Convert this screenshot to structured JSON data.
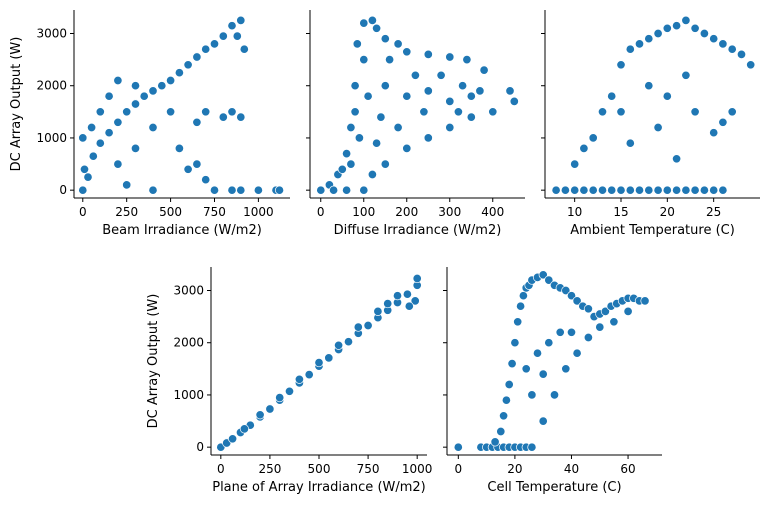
{
  "chart_data": [
    {
      "type": "scatter",
      "xlabel": "Beam Irradiance (W/m2)",
      "ylabel": "DC Array Output (W)",
      "xlim": [
        -50,
        1180
      ],
      "ylim": [
        -150,
        3450
      ],
      "xticks": [
        0,
        250,
        500,
        750,
        1000
      ],
      "yticks": [
        0,
        1000,
        2000,
        3000
      ],
      "color": "#1f77b4",
      "points": [
        [
          0,
          0
        ],
        [
          30,
          250
        ],
        [
          60,
          650
        ],
        [
          100,
          900
        ],
        [
          150,
          1100
        ],
        [
          200,
          1300
        ],
        [
          250,
          1500
        ],
        [
          300,
          1650
        ],
        [
          350,
          1800
        ],
        [
          400,
          1900
        ],
        [
          450,
          2000
        ],
        [
          500,
          2100
        ],
        [
          550,
          2250
        ],
        [
          600,
          2400
        ],
        [
          650,
          2550
        ],
        [
          700,
          2700
        ],
        [
          750,
          2800
        ],
        [
          800,
          2950
        ],
        [
          850,
          3150
        ],
        [
          900,
          3250
        ],
        [
          700,
          1500
        ],
        [
          800,
          1400
        ],
        [
          850,
          1500
        ],
        [
          900,
          1400
        ],
        [
          600,
          400
        ],
        [
          650,
          500
        ],
        [
          700,
          200
        ],
        [
          750,
          0
        ],
        [
          850,
          0
        ],
        [
          900,
          0
        ],
        [
          1100,
          0
        ],
        [
          1120,
          0
        ],
        [
          1000,
          0
        ],
        [
          200,
          2100
        ],
        [
          300,
          2000
        ],
        [
          150,
          1800
        ],
        [
          100,
          1500
        ],
        [
          500,
          1500
        ],
        [
          400,
          1200
        ],
        [
          300,
          800
        ],
        [
          200,
          500
        ],
        [
          50,
          1200
        ],
        [
          0,
          1000
        ],
        [
          10,
          400
        ],
        [
          400,
          0
        ],
        [
          250,
          100
        ],
        [
          550,
          800
        ],
        [
          650,
          1300
        ],
        [
          880,
          2950
        ],
        [
          920,
          2700
        ]
      ]
    },
    {
      "type": "scatter",
      "xlabel": "Diffuse Irradiance (W/m2)",
      "ylabel": "",
      "xlim": [
        -25,
        475
      ],
      "ylim": [
        -150,
        3450
      ],
      "xticks": [
        0,
        100,
        200,
        300,
        400
      ],
      "yticks": [
        0,
        1000,
        2000,
        3000
      ],
      "color": "#1f77b4",
      "points": [
        [
          0,
          0
        ],
        [
          20,
          100
        ],
        [
          40,
          300
        ],
        [
          50,
          400
        ],
        [
          60,
          700
        ],
        [
          70,
          1200
        ],
        [
          80,
          2000
        ],
        [
          85,
          2800
        ],
        [
          100,
          3200
        ],
        [
          120,
          3250
        ],
        [
          130,
          3100
        ],
        [
          150,
          2900
        ],
        [
          180,
          2800
        ],
        [
          200,
          2650
        ],
        [
          250,
          2600
        ],
        [
          300,
          2550
        ],
        [
          340,
          2500
        ],
        [
          380,
          2300
        ],
        [
          440,
          1900
        ],
        [
          450,
          1700
        ],
        [
          400,
          1500
        ],
        [
          350,
          1400
        ],
        [
          300,
          1200
        ],
        [
          250,
          1000
        ],
        [
          200,
          800
        ],
        [
          150,
          500
        ],
        [
          120,
          300
        ],
        [
          100,
          0
        ],
        [
          60,
          0
        ],
        [
          30,
          0
        ],
        [
          80,
          1500
        ],
        [
          100,
          2500
        ],
        [
          150,
          2000
        ],
        [
          200,
          1800
        ],
        [
          250,
          1900
        ],
        [
          300,
          1700
        ],
        [
          350,
          1800
        ],
        [
          180,
          1200
        ],
        [
          130,
          900
        ],
        [
          90,
          1000
        ],
        [
          110,
          1800
        ],
        [
          160,
          2500
        ],
        [
          220,
          2200
        ],
        [
          280,
          2200
        ],
        [
          330,
          2000
        ],
        [
          370,
          1900
        ],
        [
          240,
          1500
        ],
        [
          320,
          1500
        ],
        [
          140,
          1400
        ],
        [
          70,
          500
        ]
      ]
    },
    {
      "type": "scatter",
      "xlabel": "Ambient Temperature (C)",
      "ylabel": "",
      "xlim": [
        6.8,
        30
      ],
      "ylim": [
        -150,
        3450
      ],
      "xticks": [
        10,
        15,
        20,
        25
      ],
      "yticks": [
        0,
        1000,
        2000,
        3000
      ],
      "color": "#1f77b4",
      "points": [
        [
          8,
          0
        ],
        [
          9,
          0
        ],
        [
          10,
          0
        ],
        [
          11,
          0
        ],
        [
          12,
          0
        ],
        [
          13,
          0
        ],
        [
          14,
          0
        ],
        [
          15,
          0
        ],
        [
          16,
          0
        ],
        [
          17,
          0
        ],
        [
          18,
          0
        ],
        [
          19,
          0
        ],
        [
          20,
          0
        ],
        [
          21,
          0
        ],
        [
          22,
          0
        ],
        [
          23,
          0
        ],
        [
          24,
          0
        ],
        [
          25,
          0
        ],
        [
          26,
          0
        ],
        [
          10,
          500
        ],
        [
          11,
          800
        ],
        [
          12,
          1000
        ],
        [
          13,
          1500
        ],
        [
          14,
          1800
        ],
        [
          15,
          2400
        ],
        [
          16,
          2700
        ],
        [
          17,
          2800
        ],
        [
          18,
          2900
        ],
        [
          19,
          3000
        ],
        [
          20,
          3100
        ],
        [
          21,
          3150
        ],
        [
          22,
          3250
        ],
        [
          23,
          3100
        ],
        [
          24,
          3000
        ],
        [
          25,
          2900
        ],
        [
          26,
          2800
        ],
        [
          27,
          2700
        ],
        [
          28,
          2600
        ],
        [
          29,
          2400
        ],
        [
          27,
          1500
        ],
        [
          26,
          1300
        ],
        [
          25,
          1100
        ],
        [
          15,
          1500
        ],
        [
          18,
          2000
        ],
        [
          20,
          1800
        ],
        [
          22,
          2200
        ],
        [
          16,
          900
        ],
        [
          19,
          1200
        ],
        [
          23,
          1500
        ],
        [
          21,
          600
        ]
      ]
    },
    {
      "type": "scatter",
      "xlabel": "Plane of Array Irradiance (W/m2)",
      "ylabel": "DC Array Output (W)",
      "xlim": [
        -50,
        1050
      ],
      "ylim": [
        -150,
        3450
      ],
      "xticks": [
        0,
        250,
        500,
        750,
        1000
      ],
      "yticks": [
        0,
        1000,
        2000,
        3000
      ],
      "color": "#1f77b4",
      "points": [
        [
          0,
          0
        ],
        [
          30,
          80
        ],
        [
          60,
          160
        ],
        [
          100,
          280
        ],
        [
          150,
          420
        ],
        [
          200,
          580
        ],
        [
          250,
          730
        ],
        [
          300,
          900
        ],
        [
          350,
          1070
        ],
        [
          400,
          1230
        ],
        [
          450,
          1390
        ],
        [
          500,
          1550
        ],
        [
          550,
          1710
        ],
        [
          600,
          1870
        ],
        [
          650,
          2020
        ],
        [
          700,
          2180
        ],
        [
          750,
          2330
        ],
        [
          800,
          2480
        ],
        [
          850,
          2620
        ],
        [
          900,
          2770
        ],
        [
          950,
          2930
        ],
        [
          1000,
          3100
        ],
        [
          1000,
          3230
        ],
        [
          990,
          2800
        ],
        [
          960,
          2700
        ],
        [
          900,
          2900
        ],
        [
          850,
          2750
        ],
        [
          800,
          2600
        ],
        [
          700,
          2300
        ],
        [
          600,
          1950
        ],
        [
          500,
          1620
        ],
        [
          400,
          1300
        ],
        [
          300,
          950
        ],
        [
          200,
          620
        ],
        [
          120,
          350
        ]
      ]
    },
    {
      "type": "scatter",
      "xlabel": "Cell Temperature (C)",
      "ylabel": "",
      "xlim": [
        -4,
        72
      ],
      "ylim": [
        -150,
        3450
      ],
      "xticks": [
        0,
        20,
        40,
        60
      ],
      "yticks": [
        0,
        1000,
        2000,
        3000
      ],
      "color": "#1f77b4",
      "points": [
        [
          0,
          0
        ],
        [
          8,
          0
        ],
        [
          10,
          0
        ],
        [
          12,
          0
        ],
        [
          14,
          0
        ],
        [
          16,
          0
        ],
        [
          18,
          0
        ],
        [
          20,
          0
        ],
        [
          22,
          0
        ],
        [
          24,
          0
        ],
        [
          26,
          0
        ],
        [
          13,
          100
        ],
        [
          15,
          300
        ],
        [
          16,
          600
        ],
        [
          17,
          900
        ],
        [
          18,
          1200
        ],
        [
          19,
          1600
        ],
        [
          20,
          2000
        ],
        [
          21,
          2400
        ],
        [
          22,
          2700
        ],
        [
          23,
          2900
        ],
        [
          24,
          3050
        ],
        [
          25,
          3100
        ],
        [
          26,
          3200
        ],
        [
          28,
          3250
        ],
        [
          30,
          3300
        ],
        [
          32,
          3200
        ],
        [
          34,
          3100
        ],
        [
          36,
          3050
        ],
        [
          38,
          3000
        ],
        [
          40,
          2900
        ],
        [
          42,
          2800
        ],
        [
          44,
          2700
        ],
        [
          46,
          2650
        ],
        [
          48,
          2500
        ],
        [
          50,
          2550
        ],
        [
          52,
          2600
        ],
        [
          54,
          2700
        ],
        [
          56,
          2750
        ],
        [
          58,
          2800
        ],
        [
          60,
          2850
        ],
        [
          62,
          2850
        ],
        [
          64,
          2800
        ],
        [
          66,
          2800
        ],
        [
          30,
          500
        ],
        [
          34,
          1000
        ],
        [
          38,
          1500
        ],
        [
          42,
          1800
        ],
        [
          46,
          2100
        ],
        [
          50,
          2300
        ],
        [
          28,
          1800
        ],
        [
          24,
          1500
        ],
        [
          32,
          2000
        ],
        [
          36,
          2200
        ],
        [
          26,
          1000
        ],
        [
          30,
          1400
        ],
        [
          40,
          2200
        ],
        [
          55,
          2400
        ],
        [
          60,
          2600
        ]
      ]
    }
  ]
}
